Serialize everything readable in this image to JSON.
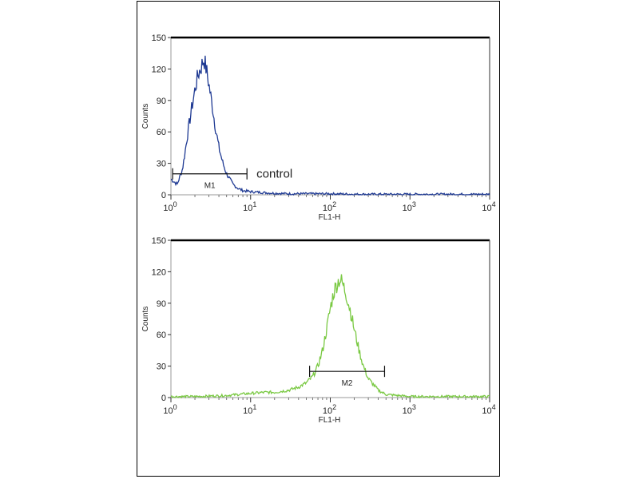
{
  "chart_data": [
    {
      "type": "line",
      "xscale": "log",
      "xlim": [
        1,
        10000
      ],
      "ylim": [
        0,
        150
      ],
      "xlabel": "FL1-H",
      "ylabel": "Counts",
      "yticks": [
        "0",
        "30",
        "60",
        "90",
        "120",
        "150"
      ],
      "xticks": [
        {
          "base": "10",
          "exp": "0"
        },
        {
          "base": "10",
          "exp": "1"
        },
        {
          "base": "10",
          "exp": "2"
        },
        {
          "base": "10",
          "exp": "3"
        },
        {
          "base": "10",
          "exp": "4"
        }
      ],
      "series_color": "#1f3a93",
      "peak": {
        "x": 2.7,
        "y": 130
      },
      "series": [
        {
          "x": [
            1.0,
            1.2,
            1.4,
            1.6,
            1.8,
            2.0,
            2.2,
            2.4,
            2.6,
            2.8,
            3.0,
            3.3,
            3.6,
            4.0,
            4.5,
            5.0,
            6.0,
            7.0,
            8.0,
            10,
            15,
            20,
            30,
            50,
            100,
            200,
            500,
            1000,
            3000,
            10000
          ],
          "y": [
            15,
            10,
            25,
            55,
            80,
            100,
            115,
            122,
            130,
            118,
            105,
            85,
            65,
            45,
            30,
            20,
            10,
            6,
            4,
            3,
            2,
            1.5,
            1,
            1,
            1,
            0.5,
            0.5,
            0.5,
            0.5,
            0.5
          ]
        }
      ],
      "marker": {
        "label": "M1",
        "x1": 1.05,
        "x2": 9.0,
        "y": 20
      },
      "annotation": "control"
    },
    {
      "type": "line",
      "xscale": "log",
      "xlim": [
        1,
        10000
      ],
      "ylim": [
        0,
        150
      ],
      "xlabel": "FL1-H",
      "ylabel": "Counts",
      "yticks": [
        "0",
        "30",
        "60",
        "90",
        "120",
        "150"
      ],
      "xticks": [
        {
          "base": "10",
          "exp": "0"
        },
        {
          "base": "10",
          "exp": "1"
        },
        {
          "base": "10",
          "exp": "2"
        },
        {
          "base": "10",
          "exp": "3"
        },
        {
          "base": "10",
          "exp": "4"
        }
      ],
      "series_color": "#7ac943",
      "peak": {
        "x": 130,
        "y": 113
      },
      "series": [
        {
          "x": [
            1,
            2,
            5,
            10,
            15,
            20,
            30,
            40,
            50,
            60,
            70,
            80,
            90,
            100,
            110,
            120,
            130,
            140,
            160,
            180,
            200,
            230,
            260,
            300,
            400,
            500,
            700,
            1000,
            3000,
            10000
          ],
          "y": [
            1,
            1,
            2,
            4,
            5,
            5,
            7,
            10,
            14,
            20,
            30,
            45,
            65,
            85,
            100,
            108,
            113,
            110,
            98,
            82,
            65,
            45,
            30,
            18,
            7,
            3,
            2,
            1,
            1,
            1
          ]
        }
      ],
      "marker": {
        "label": "M2",
        "x1": 55,
        "x2": 480,
        "y": 25
      }
    }
  ]
}
